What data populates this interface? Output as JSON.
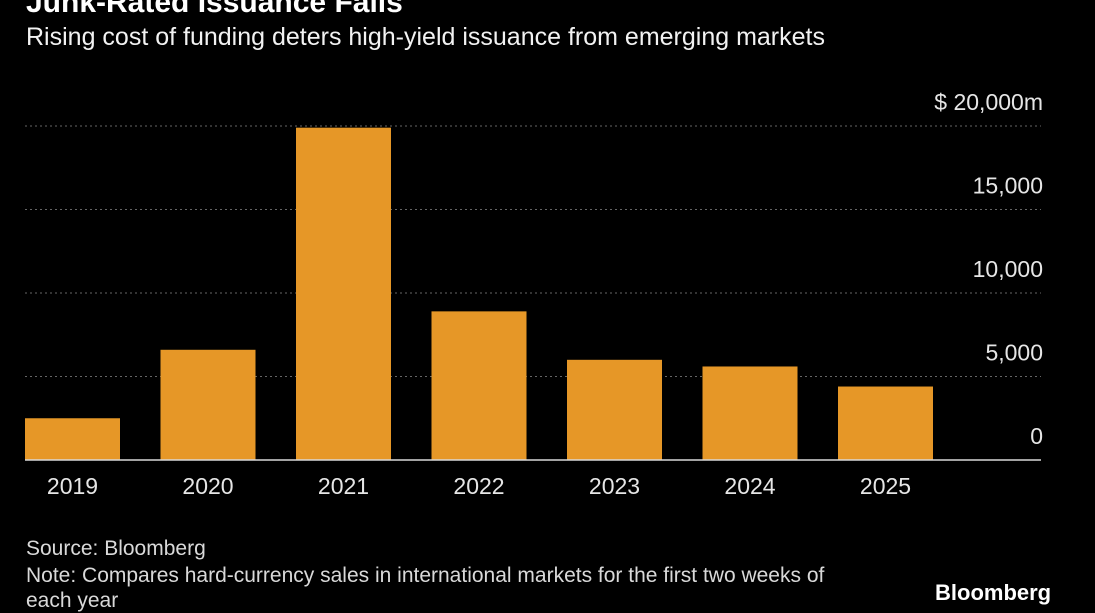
{
  "header": {
    "title": "Junk-Rated Issuance Falls",
    "subtitle": "Rising cost of funding deters high-yield issuance from emerging markets"
  },
  "chart_data": {
    "type": "bar",
    "categories": [
      "2019",
      "2020",
      "2021",
      "2022",
      "2023",
      "2024",
      "2025"
    ],
    "values": [
      2500,
      6600,
      19900,
      8900,
      6000,
      5600,
      4400
    ],
    "ylim": [
      0,
      20000
    ],
    "yticks": [
      0,
      5000,
      10000,
      15000,
      20000
    ],
    "ytick_labels": [
      "0",
      "5,000",
      "10,000",
      "15,000",
      "$ 20,000m"
    ],
    "bar_color": "#e69727",
    "grid": "dotted",
    "xlabel": "",
    "ylabel": ""
  },
  "footer": {
    "source": "Source: Bloomberg",
    "note": "Note: Compares hard-currency sales in international markets for the first two weeks of each year",
    "brand": "Bloomberg"
  }
}
